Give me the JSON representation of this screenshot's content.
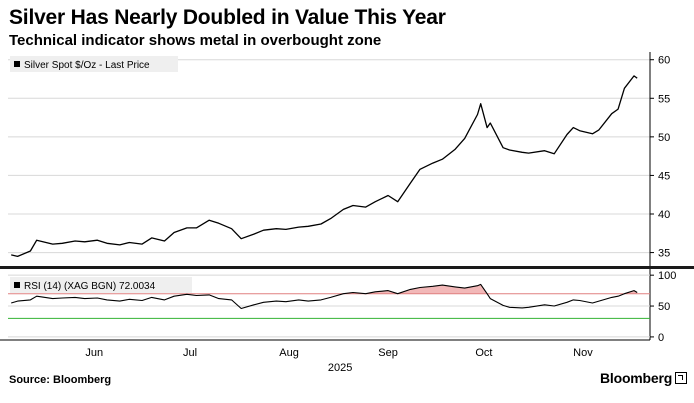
{
  "header": {
    "title": "Silver Has Nearly Doubled in Value This Year",
    "subtitle": "Technical indicator shows metal in overbought zone"
  },
  "footer": {
    "source": "Source: Bloomberg",
    "logo": "Bloomberg"
  },
  "chart_data": [
    {
      "type": "line",
      "legend": "Silver Spot $/Oz - Last Price",
      "legend_position": "top-left",
      "y_axis_side": "right",
      "ylim": [
        33,
        61
      ],
      "yticks": [
        35,
        40,
        45,
        50,
        55,
        60
      ],
      "grid": true,
      "x_dates": [
        "2025-05-20",
        "2025-05-22",
        "2025-05-26",
        "2025-05-28",
        "2025-06-02",
        "2025-06-05",
        "2025-06-09",
        "2025-06-12",
        "2025-06-16",
        "2025-06-19",
        "2025-06-23",
        "2025-06-26",
        "2025-06-30",
        "2025-07-03",
        "2025-07-07",
        "2025-07-10",
        "2025-07-14",
        "2025-07-17",
        "2025-07-21",
        "2025-07-24",
        "2025-07-28",
        "2025-07-31",
        "2025-08-04",
        "2025-08-07",
        "2025-08-11",
        "2025-08-14",
        "2025-08-18",
        "2025-08-21",
        "2025-08-25",
        "2025-08-28",
        "2025-09-01",
        "2025-09-04",
        "2025-09-08",
        "2025-09-11",
        "2025-09-15",
        "2025-09-18",
        "2025-09-22",
        "2025-09-25",
        "2025-09-29",
        "2025-10-02",
        "2025-10-06",
        "2025-10-09",
        "2025-10-13",
        "2025-10-14",
        "2025-10-16",
        "2025-10-17",
        "2025-10-21",
        "2025-10-23",
        "2025-10-27",
        "2025-10-29",
        "2025-11-03",
        "2025-11-06",
        "2025-11-10",
        "2025-11-12",
        "2025-11-14",
        "2025-11-18",
        "2025-11-20",
        "2025-11-24",
        "2025-11-26",
        "2025-11-28",
        "2025-12-01",
        "2025-12-02"
      ],
      "values": [
        34.7,
        34.5,
        35.2,
        36.6,
        36.1,
        36.2,
        36.5,
        36.4,
        36.6,
        36.2,
        36.0,
        36.3,
        36.1,
        36.9,
        36.5,
        37.6,
        38.2,
        38.2,
        39.2,
        38.8,
        38.1,
        36.8,
        37.4,
        37.9,
        38.1,
        38.0,
        38.3,
        38.4,
        38.7,
        39.4,
        40.6,
        41.1,
        40.9,
        41.6,
        42.4,
        41.6,
        44.0,
        45.8,
        46.6,
        47.1,
        48.4,
        49.8,
        52.9,
        54.3,
        51.2,
        51.8,
        48.6,
        48.3,
        48.0,
        47.9,
        48.2,
        47.8,
        50.3,
        51.2,
        50.8,
        50.4,
        50.9,
        53.0,
        53.6,
        56.3,
        57.9,
        57.6
      ]
    },
    {
      "type": "line",
      "legend": "RSI (14) (XAG BGN) 72.0034",
      "legend_position": "top-left",
      "y_axis_side": "right",
      "ylim": [
        -5,
        110
      ],
      "yticks": [
        0,
        50,
        100
      ],
      "reference_lines": [
        70,
        30
      ],
      "overbought_fill_above": 70,
      "x_dates": [
        "2025-05-20",
        "2025-05-22",
        "2025-05-26",
        "2025-05-28",
        "2025-06-02",
        "2025-06-05",
        "2025-06-09",
        "2025-06-12",
        "2025-06-16",
        "2025-06-19",
        "2025-06-23",
        "2025-06-26",
        "2025-06-30",
        "2025-07-03",
        "2025-07-07",
        "2025-07-10",
        "2025-07-14",
        "2025-07-17",
        "2025-07-21",
        "2025-07-24",
        "2025-07-28",
        "2025-07-31",
        "2025-08-04",
        "2025-08-07",
        "2025-08-11",
        "2025-08-14",
        "2025-08-18",
        "2025-08-21",
        "2025-08-25",
        "2025-08-28",
        "2025-09-01",
        "2025-09-04",
        "2025-09-08",
        "2025-09-11",
        "2025-09-15",
        "2025-09-18",
        "2025-09-22",
        "2025-09-25",
        "2025-09-29",
        "2025-10-02",
        "2025-10-06",
        "2025-10-09",
        "2025-10-13",
        "2025-10-14",
        "2025-10-16",
        "2025-10-17",
        "2025-10-21",
        "2025-10-23",
        "2025-10-27",
        "2025-10-29",
        "2025-11-03",
        "2025-11-06",
        "2025-11-10",
        "2025-11-12",
        "2025-11-14",
        "2025-11-18",
        "2025-11-20",
        "2025-11-24",
        "2025-11-26",
        "2025-11-28",
        "2025-12-01",
        "2025-12-02"
      ],
      "values": [
        55,
        58,
        60,
        66,
        62,
        63,
        64,
        62,
        63,
        60,
        58,
        61,
        59,
        64,
        60,
        66,
        69,
        67,
        68,
        62,
        60,
        46,
        52,
        56,
        58,
        57,
        60,
        58,
        60,
        64,
        70,
        72,
        70,
        73,
        75,
        70,
        77,
        80,
        82,
        84,
        81,
        79,
        83,
        85,
        70,
        62,
        51,
        48,
        47,
        48,
        52,
        50,
        56,
        60,
        59,
        55,
        58,
        64,
        66,
        70,
        75,
        72
      ]
    },
    {
      "type": "axis",
      "x_labels": [
        "Jun",
        "Jul",
        "Aug",
        "Sep",
        "Oct",
        "Nov"
      ],
      "x_label_dates": [
        "2025-06-15",
        "2025-07-15",
        "2025-08-15",
        "2025-09-15",
        "2025-10-15",
        "2025-11-15"
      ],
      "year_label": "2025"
    }
  ],
  "colors": {
    "line": "#000000",
    "grid": "#d8d8d8",
    "overbought_line": "#e08080",
    "oversold_line": "#33b233",
    "overbought_fill": "#f2b8b8"
  }
}
